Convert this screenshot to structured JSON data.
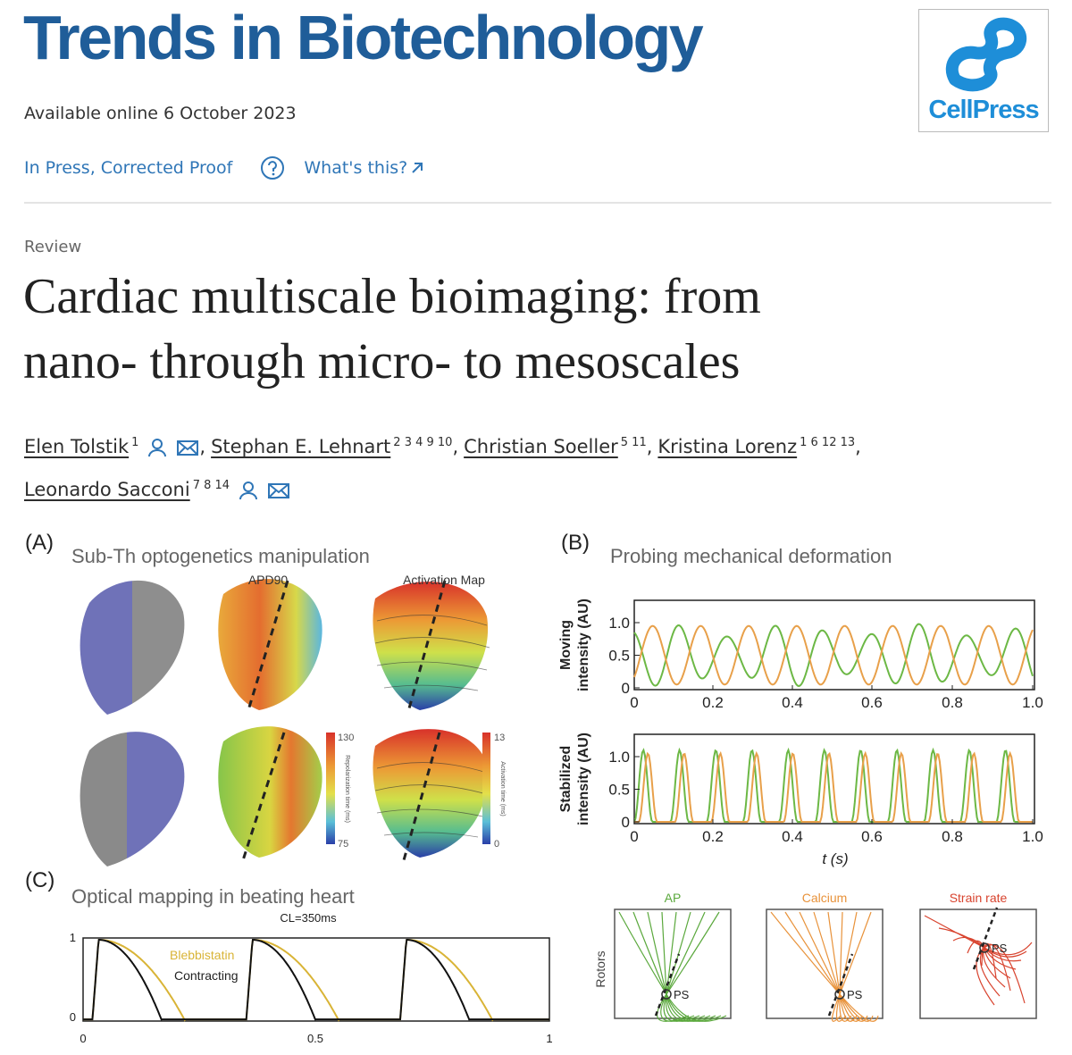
{
  "header": {
    "journal": "Trends in Biotechnology",
    "publisher": "CellPress",
    "availability": "Available online 6 October 2023",
    "status": "In Press, Corrected Proof",
    "help_link": "What's this?"
  },
  "article": {
    "type": "Review",
    "title_lines": [
      "Cardiac multiscale bioimaging: from",
      "nano- through micro- to mesoscales"
    ],
    "authors": [
      {
        "name": "Elen Tolstik",
        "affiliations": "1"
      },
      {
        "name": "Stephan E. Lehnart",
        "affiliations": "2 3 4 9 10"
      },
      {
        "name": "Christian Soeller",
        "affiliations": "5 11"
      },
      {
        "name": "Kristina Lorenz",
        "affiliations": "1 6 12 13"
      },
      {
        "name": "Leonardo Sacconi",
        "affiliations": "7 8 14"
      }
    ],
    "author_separator": ","
  },
  "figure": {
    "panel_a": {
      "label": "(A)",
      "title": "Sub-Th optogenetics manipulation",
      "map_titles": [
        "APD90",
        "Activation Map"
      ],
      "colorbars": [
        {
          "max": "130",
          "min": "75",
          "label": "Repolarization time (ms)"
        },
        {
          "max": "13",
          "min": "0",
          "label": "Activation time (ms)"
        }
      ]
    },
    "panel_b": {
      "label": "(B)",
      "title": "Probing mechanical deformation",
      "plots": [
        {
          "ylabel_lines": [
            "Moving",
            "intensity (AU)"
          ]
        },
        {
          "ylabel_lines": [
            "Stabilized",
            "intensity (AU)"
          ]
        }
      ],
      "yticks": [
        "1.0",
        "0.5",
        "0"
      ],
      "xticks": [
        "0",
        "0.2",
        "0.4",
        "0.6",
        "0.8",
        "1.0"
      ],
      "xlabel": "t (s)"
    },
    "panel_c": {
      "label": "(C)",
      "title": "Optical mapping in beating heart",
      "annotation": "CL=350ms",
      "legend": [
        "Blebbistatin",
        "Contracting"
      ],
      "yticks": [
        "1",
        "0"
      ],
      "xticks": [
        "0",
        "0.5",
        "1"
      ]
    },
    "rotors": {
      "ylabel": "Rotors",
      "maps": [
        {
          "title": "AP",
          "color": "#5aa83c"
        },
        {
          "title": "Calcium",
          "color": "#e8923a"
        },
        {
          "title": "Strain rate",
          "color": "#d8432e"
        }
      ],
      "point_label": "PS"
    }
  }
}
